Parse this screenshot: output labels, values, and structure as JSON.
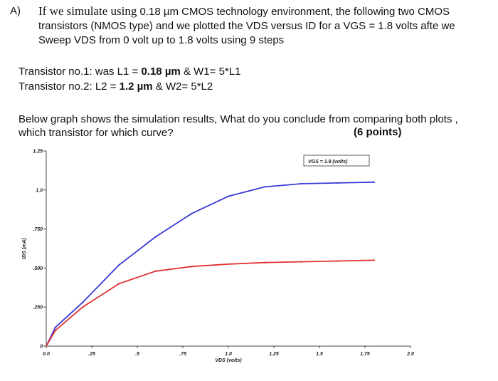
{
  "question": {
    "letter": "A)",
    "line1_serif": "If we simulate using",
    "line1_rest": "0.18 µm CMOS technology environment, the following two CMOS",
    "line2": "transistors (NMOS type) and we plotted the VDS versus ID for a VGS = 1.8 volts afte we",
    "line3": "Sweep VDS from 0 volt up to 1.8 volts using 9 steps"
  },
  "transistor1": {
    "prefix": "Transistor no.1:  was   L1 = ",
    "length": "0.18 µm",
    "suffix": " & W1= 5*L1"
  },
  "transistor2": {
    "prefix": "Transistor no.2: L2 = ",
    "length": "1.2 µm",
    "suffix": " & W2= 5*L2"
  },
  "prompt": {
    "line1": "Below graph shows the simulation results, What do you conclude from comparing both plots ,",
    "line2": "which transistor for which curve?",
    "points": "(6 points)"
  },
  "chart_data": {
    "type": "line",
    "xlabel": "VDS (volts)",
    "ylabel": "IDS (mA)",
    "xlim": [
      0,
      2.0
    ],
    "ylim": [
      0,
      1.25
    ],
    "x_ticks": [
      "0.0",
      ".25",
      ".5",
      ".75",
      "1.0",
      "1.25",
      "1.5",
      "1.75",
      "2.0"
    ],
    "y_ticks": [
      "0",
      ".250",
      ".500",
      ".750",
      "1.0",
      "1.25"
    ],
    "legend": "VGS = 1.8 (volts)",
    "legend_position": "top-right",
    "grid": false,
    "series": [
      {
        "color": "#3a3ad6",
        "x": [
          0,
          0.05,
          0.2,
          0.4,
          0.6,
          0.8,
          1.0,
          1.2,
          1.4,
          1.6,
          1.8
        ],
        "y": [
          0,
          0.12,
          0.28,
          0.52,
          0.7,
          0.85,
          0.96,
          1.02,
          1.04,
          1.045,
          1.05
        ]
      },
      {
        "color": "#e03030",
        "x": [
          0,
          0.05,
          0.2,
          0.4,
          0.6,
          0.8,
          1.0,
          1.2,
          1.4,
          1.6,
          1.8
        ],
        "y": [
          0,
          0.1,
          0.25,
          0.4,
          0.48,
          0.51,
          0.525,
          0.535,
          0.54,
          0.545,
          0.55
        ]
      }
    ]
  }
}
